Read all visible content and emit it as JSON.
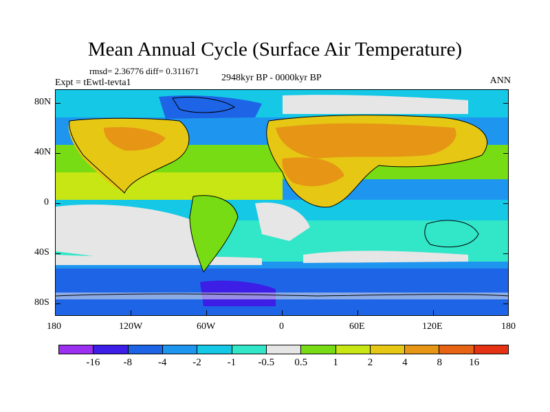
{
  "title": "Mean Annual Cycle (Surface Air Temperature)",
  "stats_text": "rmsd= 2.36776 diff= 0.311671",
  "experiment_text": "Expt = tEwtl-tevta1",
  "period_text": "2948kyr BP - 0000kyr BP",
  "season_text": "ANN",
  "lat_labels": [
    "80N",
    "40N",
    "0",
    "40S",
    "80S"
  ],
  "lon_labels": [
    "180",
    "120W",
    "60W",
    "0",
    "60E",
    "120E",
    "180"
  ],
  "colorbar": {
    "labels": [
      "-16",
      "-8",
      "-4",
      "-2",
      "-1",
      "-0.5",
      "0.5",
      "1",
      "2",
      "4",
      "8",
      "16"
    ],
    "colors": [
      "#9b30f0",
      "#3c1ee6",
      "#1e64e6",
      "#1e96f0",
      "#14c8e6",
      "#32e6c8",
      "#e6e6e6",
      "#78dc14",
      "#c8e614",
      "#e6c814",
      "#e69614",
      "#e66414",
      "#e63214"
    ]
  }
}
